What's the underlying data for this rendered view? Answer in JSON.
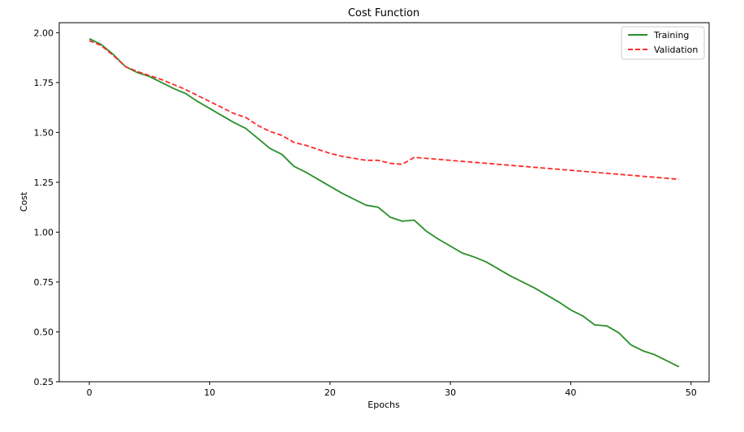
{
  "chart_data": {
    "type": "line",
    "title": "Cost Function",
    "xlabel": "Epochs",
    "ylabel": "Cost",
    "xlim": [
      -2.5,
      51.5
    ],
    "ylim": [
      0.25,
      2.05
    ],
    "xticks": [
      0,
      10,
      20,
      30,
      40,
      50
    ],
    "yticks": [
      0.25,
      0.5,
      0.75,
      1.0,
      1.25,
      1.5,
      1.75,
      2.0
    ],
    "xtick_labels": [
      "0",
      "10",
      "20",
      "30",
      "40",
      "50"
    ],
    "ytick_labels": [
      "0.25",
      "0.50",
      "0.75",
      "1.00",
      "1.25",
      "1.50",
      "1.75",
      "2.00"
    ],
    "grid": false,
    "legend_position": "top-right",
    "x": [
      0,
      1,
      2,
      3,
      4,
      5,
      6,
      7,
      8,
      9,
      10,
      11,
      12,
      13,
      14,
      15,
      16,
      17,
      18,
      19,
      20,
      21,
      22,
      23,
      24,
      25,
      26,
      27,
      28,
      29,
      30,
      31,
      32,
      33,
      34,
      35,
      36,
      37,
      38,
      39,
      40,
      41,
      42,
      43,
      44,
      45,
      46,
      47,
      48,
      49
    ],
    "series": [
      {
        "name": "Training",
        "color": "#2a8f2a",
        "style": "solid",
        "values": [
          1.97,
          1.94,
          1.89,
          1.83,
          1.8,
          1.78,
          1.75,
          1.72,
          1.695,
          1.655,
          1.62,
          1.585,
          1.55,
          1.52,
          1.47,
          1.42,
          1.39,
          1.33,
          1.3,
          1.265,
          1.23,
          1.195,
          1.165,
          1.135,
          1.125,
          1.075,
          1.055,
          1.06,
          1.005,
          0.965,
          0.93,
          0.895,
          0.875,
          0.85,
          0.815,
          0.78,
          0.75,
          0.72,
          0.685,
          0.65,
          0.61,
          0.58,
          0.535,
          0.53,
          0.495,
          0.435,
          0.405,
          0.385,
          0.355,
          0.325
        ]
      },
      {
        "name": "Validation",
        "color": "#ff2a2a",
        "style": "dashed",
        "values": [
          1.96,
          1.935,
          1.885,
          1.83,
          1.805,
          1.785,
          1.765,
          1.74,
          1.715,
          1.685,
          1.655,
          1.625,
          1.595,
          1.575,
          1.535,
          1.505,
          1.485,
          1.45,
          1.435,
          1.415,
          1.395,
          1.38,
          1.37,
          1.36,
          1.36,
          1.345,
          1.34,
          1.375,
          1.37,
          1.365,
          1.36,
          1.355,
          1.35,
          1.345,
          1.34,
          1.335,
          1.33,
          1.325,
          1.32,
          1.315,
          1.31,
          1.305,
          1.3,
          1.295,
          1.29,
          1.285,
          1.28,
          1.275,
          1.27,
          1.265
        ]
      }
    ]
  }
}
